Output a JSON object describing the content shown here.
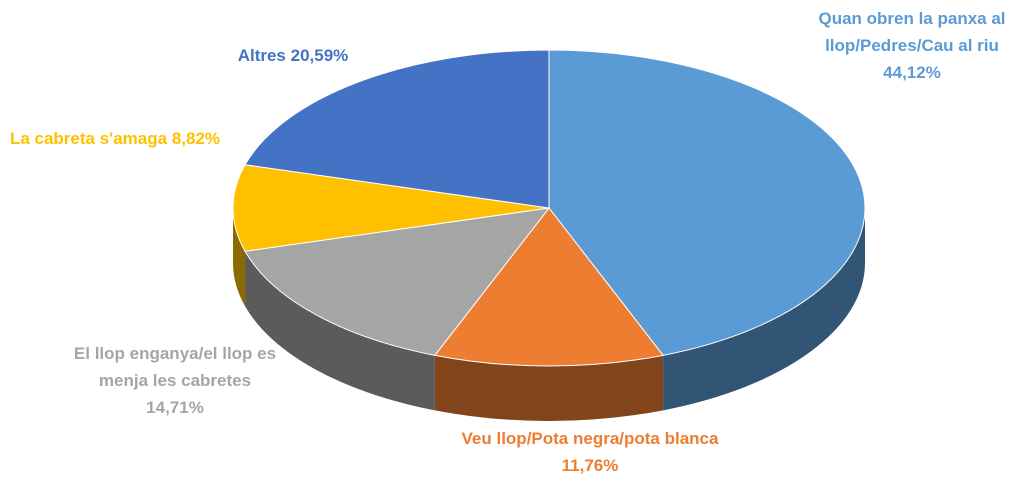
{
  "chart_data": {
    "type": "pie3d",
    "categories": [
      "Quan obren la panxa al llop/Pedres/Cau al riu",
      "Veu llop/Pota negra/pota blanca",
      "El llop enganya/el llop es menja les cabretes",
      "La cabreta s'amaga",
      "Altres"
    ],
    "values": [
      44.12,
      11.76,
      14.71,
      8.82,
      20.59
    ],
    "value_labels": [
      "44,12%",
      "11,76%",
      "14,71%",
      "8,82%",
      "20,59%"
    ],
    "colors": [
      "#5b9bd5",
      "#ed7d31",
      "#a5a5a5",
      "#ffc000",
      "#4472c4"
    ]
  }
}
